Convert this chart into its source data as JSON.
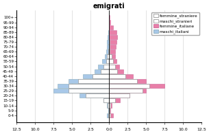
{
  "title": "emigrati",
  "age_groups": [
    "0-4",
    "5-9",
    "10-14",
    "15-19",
    "20-24",
    "25-29",
    "30-34",
    "35-39",
    "40-44",
    "45-49",
    "50-54",
    "55-59",
    "60-64",
    "65-69",
    "70-74",
    "75-79",
    "80-84",
    "85-89",
    "90-94",
    "95-99",
    "100+"
  ],
  "maschi_italiani": [
    0.3,
    0.1,
    0.3,
    0.8,
    4.0,
    7.5,
    7.0,
    5.5,
    3.5,
    2.0,
    1.5,
    0.9,
    0.6,
    0.4,
    0.3,
    0.25,
    0.2,
    0.1,
    0.05,
    0.0,
    0.0
  ],
  "maschi_stranieri": [
    0.1,
    0.05,
    0.2,
    0.8,
    3.2,
    5.5,
    5.5,
    4.2,
    2.2,
    1.1,
    0.8,
    0.4,
    0.25,
    0.1,
    0.05,
    0.05,
    0.05,
    0.0,
    0.0,
    0.0,
    0.0
  ],
  "femmine_italiane": [
    0.5,
    0.2,
    0.4,
    1.5,
    2.8,
    5.0,
    7.5,
    5.0,
    3.2,
    1.9,
    1.4,
    1.0,
    0.8,
    0.8,
    0.9,
    1.0,
    1.1,
    1.0,
    0.5,
    0.15,
    0.05
  ],
  "femmine_straniere": [
    0.2,
    0.05,
    0.2,
    0.8,
    2.8,
    4.5,
    5.5,
    3.8,
    2.2,
    1.1,
    0.8,
    0.5,
    0.4,
    0.1,
    0.05,
    0.05,
    0.0,
    0.0,
    0.0,
    0.0,
    0.0
  ],
  "xlim": 12.5,
  "xticks": [
    -12.5,
    -10.0,
    -7.5,
    -5.0,
    -2.5,
    0.0,
    2.5,
    5.0,
    7.5,
    10.0,
    12.5
  ],
  "xticklabels": [
    "12.5",
    "10.0",
    "7.5",
    "5.0",
    "2.5",
    "0.0",
    "2.5",
    "5.0",
    "7.5",
    "10.0",
    "12.5"
  ],
  "color_maschi_italiani": "#a8c8e8",
  "color_maschi_stranieri": "#ffffff",
  "color_femmine_italiane": "#e87fa8",
  "color_femmine_straniere": "#ffffff",
  "edgecolor_maschi_stranieri": "#999999",
  "edgecolor_femmine_straniere": "#999999",
  "edgecolor_maschi_italiani": "#88aabb",
  "edgecolor_femmine_italiane": "#cc6699"
}
